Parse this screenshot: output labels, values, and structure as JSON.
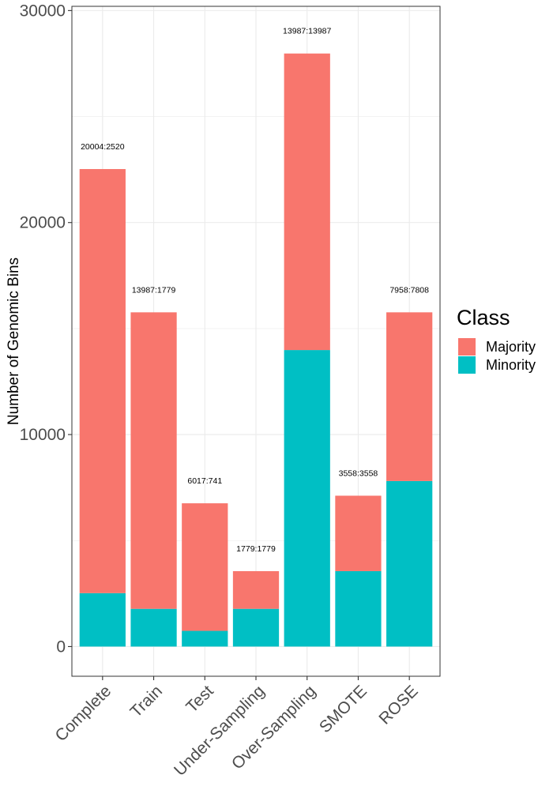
{
  "chart_data": {
    "type": "bar",
    "stacked": true,
    "categories": [
      "Complete",
      "Train",
      "Test",
      "Under-Sampling",
      "Over-Sampling",
      "SMOTE",
      "ROSE"
    ],
    "series": [
      {
        "name": "Majority",
        "color": "#F8766D",
        "values": [
          20004,
          13987,
          6017,
          1779,
          13987,
          3558,
          7958
        ]
      },
      {
        "name": "Minority",
        "color": "#00BFC4",
        "values": [
          2520,
          1779,
          741,
          1779,
          13987,
          3558,
          7808
        ]
      }
    ],
    "bar_labels": [
      "20004:2520",
      "13987:1779",
      "6017:741",
      "1779:1779",
      "13987:13987",
      "3558:3558",
      "7958:7808"
    ],
    "xlabel": "",
    "ylabel": "Number of Genomic Bins",
    "ylim": [
      -1400,
      30200
    ],
    "yticks": [
      0,
      10000,
      20000,
      30000
    ],
    "ytick_labels": [
      "0",
      "10000",
      "20000",
      "30000"
    ],
    "grid": true,
    "legend": {
      "title": "Class",
      "position": "right",
      "entries": [
        "Majority",
        "Minority"
      ]
    }
  }
}
